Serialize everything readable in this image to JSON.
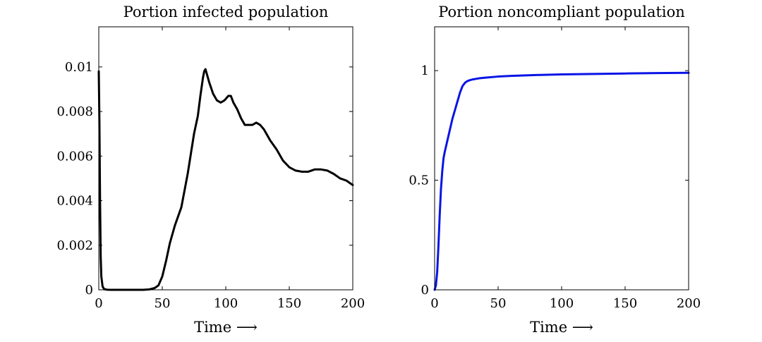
{
  "chart_data": [
    {
      "type": "line",
      "title": "Portion infected population",
      "xlabel": "Time ⟶",
      "ylabel": "",
      "xlim": [
        0,
        200
      ],
      "ylim": [
        0,
        0.0118
      ],
      "xticks": [
        0,
        50,
        100,
        150,
        200
      ],
      "xtick_labels": [
        "0",
        "50",
        "100",
        "150",
        "200"
      ],
      "yticks": [
        0,
        0.002,
        0.004,
        0.006,
        0.008,
        0.01
      ],
      "ytick_labels": [
        "0",
        "0.002",
        "0.004",
        "0.006",
        "0.008",
        "0.01"
      ],
      "grid": false,
      "series": [
        {
          "name": "infected",
          "color": "#000000",
          "x": [
            0,
            0.5,
            1,
            1.5,
            2,
            3,
            4,
            5,
            7,
            10,
            15,
            20,
            25,
            30,
            35,
            40,
            44,
            47,
            50,
            53,
            56,
            60,
            65,
            70,
            75,
            78,
            80,
            82,
            83,
            84,
            85,
            87,
            90,
            93,
            96,
            99,
            102,
            104,
            106,
            109,
            112,
            115,
            118,
            121,
            124,
            127,
            130,
            135,
            140,
            145,
            150,
            155,
            160,
            165,
            170,
            175,
            180,
            185,
            190,
            195,
            200
          ],
          "y": [
            0.0098,
            0.0075,
            0.004,
            0.0015,
            0.0006,
            0.00015,
            5e-05,
            2e-05,
            5e-06,
            2e-06,
            0,
            0,
            0,
            0,
            0,
            2e-05,
            8e-05,
            0.0002,
            0.0006,
            0.0013,
            0.0021,
            0.0029,
            0.0037,
            0.0052,
            0.007,
            0.0078,
            0.0087,
            0.0095,
            0.0098,
            0.0099,
            0.0097,
            0.0093,
            0.0088,
            0.0085,
            0.0084,
            0.0085,
            0.0087,
            0.0087,
            0.0084,
            0.0081,
            0.0077,
            0.0074,
            0.0074,
            0.0074,
            0.0075,
            0.0074,
            0.0072,
            0.0067,
            0.0063,
            0.0058,
            0.0055,
            0.00535,
            0.0053,
            0.0053,
            0.0054,
            0.0054,
            0.00535,
            0.0052,
            0.005,
            0.0049,
            0.0047
          ]
        }
      ]
    },
    {
      "type": "line",
      "title": "Portion noncompliant population",
      "xlabel": "Time ⟶",
      "ylabel": "",
      "xlim": [
        0,
        200
      ],
      "ylim": [
        0,
        1.2
      ],
      "xticks": [
        0,
        50,
        100,
        150,
        200
      ],
      "xtick_labels": [
        "0",
        "50",
        "100",
        "150",
        "200"
      ],
      "yticks": [
        0,
        0.5,
        1
      ],
      "ytick_labels": [
        "0",
        "0.5",
        "1"
      ],
      "grid": false,
      "series": [
        {
          "name": "noncompliant",
          "color": "#0a14e6",
          "x": [
            0,
            1,
            2,
            3,
            4,
            5,
            6,
            7,
            8,
            10,
            12,
            14,
            16,
            18,
            20,
            22,
            24,
            26,
            28,
            30,
            35,
            40,
            50,
            60,
            80,
            100,
            125,
            150,
            175,
            200
          ],
          "y": [
            0,
            0.02,
            0.08,
            0.2,
            0.34,
            0.46,
            0.54,
            0.6,
            0.63,
            0.68,
            0.73,
            0.78,
            0.82,
            0.86,
            0.9,
            0.93,
            0.945,
            0.953,
            0.957,
            0.96,
            0.965,
            0.968,
            0.973,
            0.976,
            0.98,
            0.983,
            0.985,
            0.987,
            0.989,
            0.99
          ]
        }
      ]
    }
  ]
}
